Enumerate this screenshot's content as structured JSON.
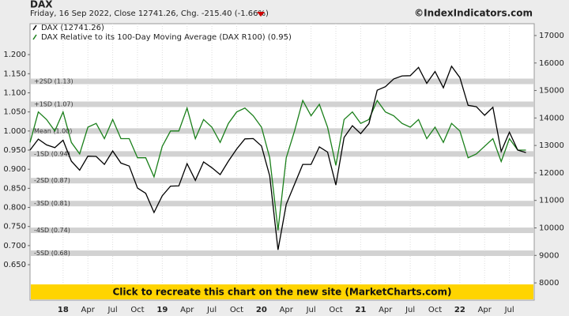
{
  "chart_data": {
    "type": "line",
    "title": "DAX",
    "subtitle": "Friday, 16 Sep 2022, Close 12741.26, Chg. -215.40 (-1.66%)",
    "source": "©IndexIndicators.com",
    "banner": "Click to recreate this chart on the new site (MarketCharts.com)",
    "x": [
      "2017-09",
      "2017-10",
      "2017-11",
      "2017-12",
      "2018-01",
      "2018-02",
      "2018-03",
      "2018-04",
      "2018-05",
      "2018-06",
      "2018-07",
      "2018-08",
      "2018-09",
      "2018-10",
      "2018-11",
      "2018-12",
      "2019-01",
      "2019-02",
      "2019-03",
      "2019-04",
      "2019-05",
      "2019-06",
      "2019-07",
      "2019-08",
      "2019-09",
      "2019-10",
      "2019-11",
      "2019-12",
      "2020-01",
      "2020-02",
      "2020-03",
      "2020-04",
      "2020-05",
      "2020-06",
      "2020-07",
      "2020-08",
      "2020-09",
      "2020-10",
      "2020-11",
      "2020-12",
      "2021-01",
      "2021-02",
      "2021-03",
      "2021-04",
      "2021-05",
      "2021-06",
      "2021-07",
      "2021-08",
      "2021-09",
      "2021-10",
      "2021-11",
      "2021-12",
      "2022-01",
      "2022-02",
      "2022-03",
      "2022-04",
      "2022-05",
      "2022-06",
      "2022-07",
      "2022-08",
      "2022-09"
    ],
    "series": [
      {
        "name": "DAX (12741.26)",
        "color": "#000000",
        "axis": "y2",
        "values": [
          12830,
          13230,
          13020,
          12920,
          13190,
          12430,
          12100,
          12610,
          12600,
          12310,
          12800,
          12360,
          12250,
          11450,
          11260,
          10560,
          11170,
          11520,
          11530,
          12340,
          11730,
          12400,
          12190,
          11940,
          12430,
          12870,
          13240,
          13250,
          12980,
          11890,
          9200,
          10860,
          11590,
          12310,
          12310,
          12950,
          12760,
          11560,
          13290,
          13720,
          13430,
          13790,
          15010,
          15140,
          15420,
          15530,
          15540,
          15840,
          15260,
          15690,
          15100,
          15880,
          15470,
          14460,
          14410,
          14100,
          14390,
          12780,
          13480,
          12830,
          12741.26
        ]
      },
      {
        "name": "DAX Relative to its 100-Day Moving Average (DAX R100) (0.95)",
        "color": "#1a7f1a",
        "axis": "y",
        "values": [
          0.97,
          1.05,
          1.03,
          1.0,
          1.05,
          0.97,
          0.94,
          1.01,
          1.02,
          0.98,
          1.03,
          0.98,
          0.98,
          0.93,
          0.93,
          0.88,
          0.96,
          1.0,
          1.0,
          1.06,
          0.98,
          1.03,
          1.01,
          0.97,
          1.02,
          1.05,
          1.06,
          1.04,
          1.01,
          0.93,
          0.74,
          0.93,
          1.0,
          1.08,
          1.04,
          1.07,
          1.01,
          0.91,
          1.03,
          1.05,
          1.02,
          1.03,
          1.08,
          1.05,
          1.04,
          1.02,
          1.01,
          1.03,
          0.98,
          1.01,
          0.97,
          1.02,
          1.0,
          0.93,
          0.94,
          0.96,
          0.98,
          0.92,
          0.98,
          0.95,
          0.95
        ]
      }
    ],
    "xlim": [
      "2017-09",
      "2022-10"
    ],
    "xticks": [
      {
        "value": "2018-01",
        "label": "18"
      },
      {
        "value": "2018-04",
        "label": "Apr"
      },
      {
        "value": "2018-07",
        "label": "Jul"
      },
      {
        "value": "2018-10",
        "label": "Oct"
      },
      {
        "value": "2019-01",
        "label": "19"
      },
      {
        "value": "2019-04",
        "label": "Apr"
      },
      {
        "value": "2019-07",
        "label": "Jul"
      },
      {
        "value": "2019-10",
        "label": "Oct"
      },
      {
        "value": "2020-01",
        "label": "20"
      },
      {
        "value": "2020-04",
        "label": "Apr"
      },
      {
        "value": "2020-07",
        "label": "Jul"
      },
      {
        "value": "2020-10",
        "label": "Oct"
      },
      {
        "value": "2021-01",
        "label": "21"
      },
      {
        "value": "2021-04",
        "label": "Apr"
      },
      {
        "value": "2021-07",
        "label": "Jul"
      },
      {
        "value": "2021-10",
        "label": "Oct"
      },
      {
        "value": "2022-01",
        "label": "22"
      },
      {
        "value": "2022-04",
        "label": "Apr"
      },
      {
        "value": "2022-07",
        "label": "Jul"
      }
    ],
    "ylim": [
      0.557,
      1.281
    ],
    "yticks": [
      {
        "value": 0.65,
        "label": "0.650"
      },
      {
        "value": 0.7,
        "label": "0.700"
      },
      {
        "value": 0.75,
        "label": "0.750"
      },
      {
        "value": 0.8,
        "label": "0.800"
      },
      {
        "value": 0.85,
        "label": "0.850"
      },
      {
        "value": 0.9,
        "label": "0.900"
      },
      {
        "value": 0.95,
        "label": "0.950"
      },
      {
        "value": 1.0,
        "label": "1.000"
      },
      {
        "value": 1.05,
        "label": "1.050"
      },
      {
        "value": 1.1,
        "label": "1.100"
      },
      {
        "value": 1.15,
        "label": "1.150"
      },
      {
        "value": 1.2,
        "label": "1.200"
      }
    ],
    "y2lim": [
      7370,
      17430
    ],
    "y2ticks": [
      8000,
      9000,
      10000,
      11000,
      12000,
      13000,
      14000,
      15000,
      16000,
      17000
    ],
    "bands": [
      {
        "label": "+2SD (1.13)",
        "value": 1.13
      },
      {
        "label": "+1SD (1.07)",
        "value": 1.07
      },
      {
        "label": "Mean (1.00)",
        "value": 1.0
      },
      {
        "label": "-1SD (0.94)",
        "value": 0.94
      },
      {
        "label": "-2SD (0.87)",
        "value": 0.87
      },
      {
        "label": "-3SD (0.81)",
        "value": 0.81
      },
      {
        "label": "-4SD (0.74)",
        "value": 0.74
      },
      {
        "label": "-5SD (0.68)",
        "value": 0.68
      }
    ],
    "grid": true
  }
}
